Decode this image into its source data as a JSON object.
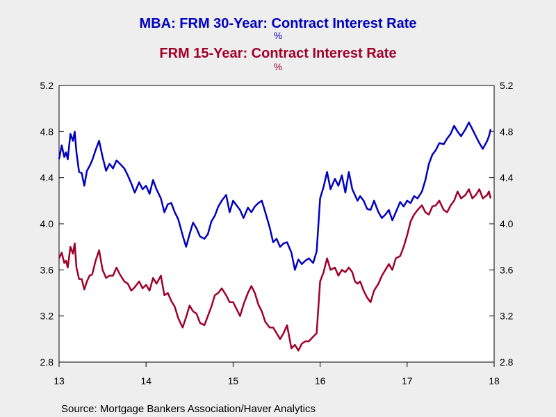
{
  "chart_data": {
    "type": "line",
    "title_lines": [
      {
        "text": "MBA: FRM 30-Year: Contract Interest Rate",
        "color": "#0000c0"
      },
      {
        "text": "%",
        "color": "#0000c0"
      },
      {
        "text": "FRM 15-Year: Contract Interest Rate",
        "color": "#a00028"
      },
      {
        "text": "%",
        "color": "#a00028"
      }
    ],
    "source": "Source:  Mortgage Bankers Association/Haver Analytics",
    "xlim": [
      2013,
      2018
    ],
    "ylim": [
      2.8,
      5.2
    ],
    "x_ticks": [
      {
        "value": 2013,
        "label": "13"
      },
      {
        "value": 2014,
        "label": "14"
      },
      {
        "value": 2015,
        "label": "15"
      },
      {
        "value": 2016,
        "label": "16"
      },
      {
        "value": 2017,
        "label": "17"
      },
      {
        "value": 2018,
        "label": "18"
      }
    ],
    "y_ticks": [
      {
        "value": 2.8,
        "label": "2.8"
      },
      {
        "value": 3.2,
        "label": "3.2"
      },
      {
        "value": 3.6,
        "label": "3.6"
      },
      {
        "value": 4.0,
        "label": "4.0"
      },
      {
        "value": 4.4,
        "label": "4.4"
      },
      {
        "value": 4.8,
        "label": "4.8"
      },
      {
        "value": 5.2,
        "label": "5.2"
      }
    ],
    "grid": false,
    "legend": "none",
    "series": [
      {
        "color": "#0000c0",
        "x": [
          2013.0,
          2013.03,
          2013.06,
          2013.08,
          2013.1,
          2013.13,
          2013.16,
          2013.18,
          2013.2,
          2013.23,
          2013.26,
          2013.29,
          2013.32,
          2013.35,
          2013.38,
          2013.42,
          2013.46,
          2013.5,
          2013.54,
          2013.58,
          2013.62,
          2013.66,
          2013.7,
          2013.75,
          2013.79,
          2013.83,
          2013.87,
          2013.92,
          2013.96,
          2014.0,
          2014.04,
          2014.08,
          2014.12,
          2014.17,
          2014.21,
          2014.25,
          2014.29,
          2014.33,
          2014.37,
          2014.42,
          2014.46,
          2014.5,
          2014.54,
          2014.58,
          2014.62,
          2014.67,
          2014.71,
          2014.75,
          2014.79,
          2014.83,
          2014.87,
          2014.92,
          2014.96,
          2015.0,
          2015.04,
          2015.08,
          2015.12,
          2015.17,
          2015.21,
          2015.25,
          2015.29,
          2015.33,
          2015.37,
          2015.42,
          2015.46,
          2015.5,
          2015.54,
          2015.58,
          2015.62,
          2015.67,
          2015.71,
          2015.75,
          2015.79,
          2015.83,
          2015.87,
          2015.92,
          2015.96,
          2016.0,
          2016.04,
          2016.08,
          2016.12,
          2016.17,
          2016.21,
          2016.25,
          2016.29,
          2016.33,
          2016.37,
          2016.4,
          2016.43,
          2016.46,
          2016.5,
          2016.54,
          2016.58,
          2016.62,
          2016.67,
          2016.71,
          2016.75,
          2016.79,
          2016.83,
          2016.87,
          2016.92,
          2016.96,
          2017.0,
          2017.04,
          2017.08,
          2017.12,
          2017.17,
          2017.21,
          2017.25,
          2017.29,
          2017.33,
          2017.37,
          2017.42,
          2017.46,
          2017.5,
          2017.54,
          2017.58,
          2017.62,
          2017.67,
          2017.71,
          2017.75,
          2017.79,
          2017.83,
          2017.87,
          2017.92,
          2017.94,
          2017.96
        ],
        "y": [
          4.56,
          4.68,
          4.58,
          4.62,
          4.56,
          4.78,
          4.72,
          4.8,
          4.62,
          4.45,
          4.44,
          4.33,
          4.46,
          4.5,
          4.55,
          4.64,
          4.72,
          4.58,
          4.46,
          4.52,
          4.48,
          4.55,
          4.52,
          4.48,
          4.42,
          4.35,
          4.27,
          4.36,
          4.3,
          4.33,
          4.26,
          4.38,
          4.3,
          4.22,
          4.1,
          4.17,
          4.18,
          4.1,
          4.04,
          3.9,
          3.8,
          3.91,
          4.01,
          3.96,
          3.89,
          3.87,
          3.91,
          4.02,
          4.07,
          4.15,
          4.2,
          4.25,
          4.1,
          4.2,
          4.16,
          4.12,
          4.05,
          4.14,
          4.1,
          4.15,
          4.18,
          4.2,
          4.1,
          3.97,
          3.84,
          3.87,
          3.8,
          3.83,
          3.84,
          3.75,
          3.6,
          3.69,
          3.65,
          3.68,
          3.7,
          3.66,
          3.76,
          4.22,
          4.32,
          4.45,
          4.3,
          4.39,
          4.33,
          4.42,
          4.27,
          4.45,
          4.3,
          4.25,
          4.2,
          4.24,
          4.2,
          4.13,
          4.12,
          4.2,
          4.1,
          4.05,
          4.08,
          4.12,
          4.03,
          4.1,
          4.19,
          4.15,
          4.2,
          4.18,
          4.24,
          4.22,
          4.28,
          4.38,
          4.52,
          4.6,
          4.64,
          4.7,
          4.69,
          4.74,
          4.78,
          4.85,
          4.8,
          4.76,
          4.82,
          4.88,
          4.82,
          4.76,
          4.7,
          4.65,
          4.72,
          4.76,
          4.82
        ]
      },
      {
        "color": "#a00028",
        "x": [
          2013.0,
          2013.03,
          2013.06,
          2013.08,
          2013.1,
          2013.13,
          2013.16,
          2013.18,
          2013.2,
          2013.23,
          2013.26,
          2013.29,
          2013.32,
          2013.35,
          2013.38,
          2013.42,
          2013.46,
          2013.5,
          2013.54,
          2013.58,
          2013.62,
          2013.66,
          2013.7,
          2013.75,
          2013.79,
          2013.83,
          2013.87,
          2013.92,
          2013.96,
          2014.0,
          2014.04,
          2014.08,
          2014.12,
          2014.17,
          2014.21,
          2014.25,
          2014.29,
          2014.33,
          2014.37,
          2014.42,
          2014.46,
          2014.5,
          2014.54,
          2014.58,
          2014.62,
          2014.67,
          2014.71,
          2014.75,
          2014.79,
          2014.83,
          2014.87,
          2014.92,
          2014.96,
          2015.0,
          2015.04,
          2015.08,
          2015.12,
          2015.17,
          2015.21,
          2015.25,
          2015.29,
          2015.33,
          2015.37,
          2015.42,
          2015.46,
          2015.5,
          2015.54,
          2015.58,
          2015.62,
          2015.67,
          2015.71,
          2015.75,
          2015.79,
          2015.83,
          2015.87,
          2015.92,
          2015.96,
          2016.0,
          2016.04,
          2016.08,
          2016.12,
          2016.17,
          2016.21,
          2016.25,
          2016.29,
          2016.33,
          2016.37,
          2016.4,
          2016.43,
          2016.46,
          2016.5,
          2016.54,
          2016.58,
          2016.62,
          2016.67,
          2016.71,
          2016.75,
          2016.79,
          2016.83,
          2016.87,
          2016.92,
          2016.96,
          2017.0,
          2017.04,
          2017.08,
          2017.12,
          2017.17,
          2017.21,
          2017.25,
          2017.29,
          2017.33,
          2017.37,
          2017.42,
          2017.46,
          2017.5,
          2017.54,
          2017.58,
          2017.62,
          2017.67,
          2017.71,
          2017.75,
          2017.79,
          2017.83,
          2017.87,
          2017.92,
          2017.94,
          2017.96
        ],
        "y": [
          3.7,
          3.75,
          3.66,
          3.68,
          3.62,
          3.8,
          3.74,
          3.83,
          3.62,
          3.52,
          3.52,
          3.43,
          3.5,
          3.55,
          3.56,
          3.68,
          3.77,
          3.6,
          3.53,
          3.55,
          3.55,
          3.62,
          3.56,
          3.5,
          3.48,
          3.42,
          3.45,
          3.5,
          3.44,
          3.47,
          3.42,
          3.53,
          3.48,
          3.55,
          3.38,
          3.4,
          3.33,
          3.28,
          3.18,
          3.1,
          3.19,
          3.29,
          3.24,
          3.22,
          3.14,
          3.12,
          3.2,
          3.28,
          3.38,
          3.4,
          3.44,
          3.38,
          3.32,
          3.32,
          3.26,
          3.2,
          3.3,
          3.4,
          3.46,
          3.4,
          3.3,
          3.24,
          3.15,
          3.1,
          3.1,
          3.05,
          3.0,
          3.05,
          3.12,
          2.92,
          2.95,
          2.9,
          2.96,
          2.98,
          2.98,
          3.02,
          3.05,
          3.5,
          3.58,
          3.7,
          3.6,
          3.62,
          3.55,
          3.6,
          3.58,
          3.62,
          3.58,
          3.5,
          3.48,
          3.5,
          3.42,
          3.36,
          3.32,
          3.42,
          3.48,
          3.55,
          3.6,
          3.65,
          3.6,
          3.7,
          3.72,
          3.8,
          3.9,
          4.02,
          4.08,
          4.12,
          4.16,
          4.1,
          4.08,
          4.15,
          4.16,
          4.2,
          4.12,
          4.1,
          4.16,
          4.2,
          4.28,
          4.22,
          4.25,
          4.3,
          4.22,
          4.25,
          4.3,
          4.22,
          4.25,
          4.28,
          4.22
        ]
      }
    ]
  }
}
